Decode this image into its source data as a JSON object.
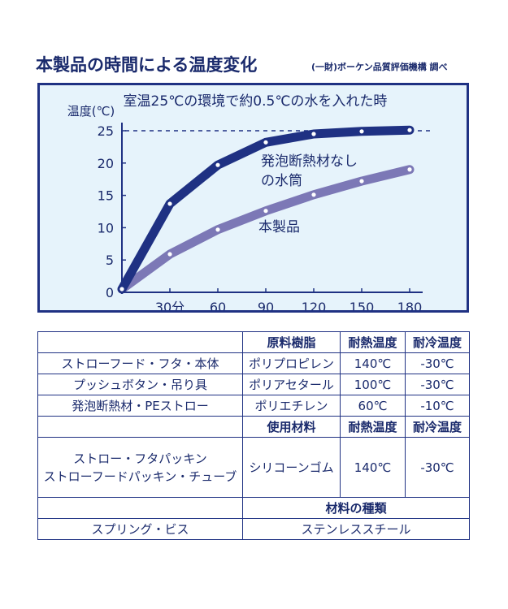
{
  "heading": "本製品の時間による温度変化",
  "source": "(一財)ボーケン品質評価機構 調べ",
  "chart_data": {
    "type": "line",
    "title": "室温25℃の環境で約0.5℃の水を入れた時",
    "ylabel": "温度(℃)",
    "x_tick_labels": [
      "30分",
      "60",
      "90",
      "120",
      "150",
      "180"
    ],
    "x_ticks": [
      30,
      60,
      90,
      120,
      150,
      180
    ],
    "xlim": [
      0,
      180
    ],
    "y_ticks": [
      0,
      5,
      10,
      15,
      20,
      25
    ],
    "ylim": [
      0,
      25
    ],
    "grid": false,
    "reference_line": {
      "y": 25,
      "style": "dashed"
    },
    "series": [
      {
        "name": "発泡断熱材なしの水筒",
        "name_lines": [
          "発泡断熱材なし",
          "の水筒"
        ],
        "color": "#1f3183",
        "x": [
          0,
          30,
          60,
          90,
          120,
          150,
          180
        ],
        "values": [
          0.5,
          13.7,
          19.7,
          23.2,
          24.5,
          24.9,
          25.1
        ]
      },
      {
        "name": "本製品",
        "name_lines": [
          "本製品"
        ],
        "color": "#7c78b6",
        "x": [
          0,
          30,
          60,
          90,
          120,
          150,
          180
        ],
        "values": [
          0.5,
          5.9,
          9.7,
          12.6,
          15.1,
          17.2,
          19.0
        ]
      }
    ]
  },
  "table": {
    "rows": [
      {
        "cells": [
          "",
          "原料樹脂",
          "耐熱温度",
          "耐冷温度"
        ],
        "type": "header"
      },
      {
        "cells": [
          "ストローフード・フタ・本体",
          "ポリプロピレン",
          "140℃",
          "-30℃"
        ],
        "type": "body"
      },
      {
        "cells": [
          "プッシュボタン・吊り具",
          "ポリアセタール",
          "100℃",
          "-30℃"
        ],
        "type": "body"
      },
      {
        "cells": [
          "発泡断熱材・PEストロー",
          "ポリエチレン",
          "60℃",
          "-10℃"
        ],
        "type": "body"
      },
      {
        "cells": [
          "",
          "使用材料",
          "耐熱温度",
          "耐冷温度"
        ],
        "type": "header"
      },
      {
        "cells": [
          "ストロー・フタパッキン\nストローフードパッキン・チューブ",
          "シリコーンゴム",
          "140℃",
          "-30℃"
        ],
        "type": "tall"
      },
      {
        "cells": [
          "",
          "材料の種類"
        ],
        "type": "header-wide"
      },
      {
        "cells": [
          "スプリング・ビス",
          "ステンレススチール"
        ],
        "type": "body-wide"
      }
    ]
  }
}
